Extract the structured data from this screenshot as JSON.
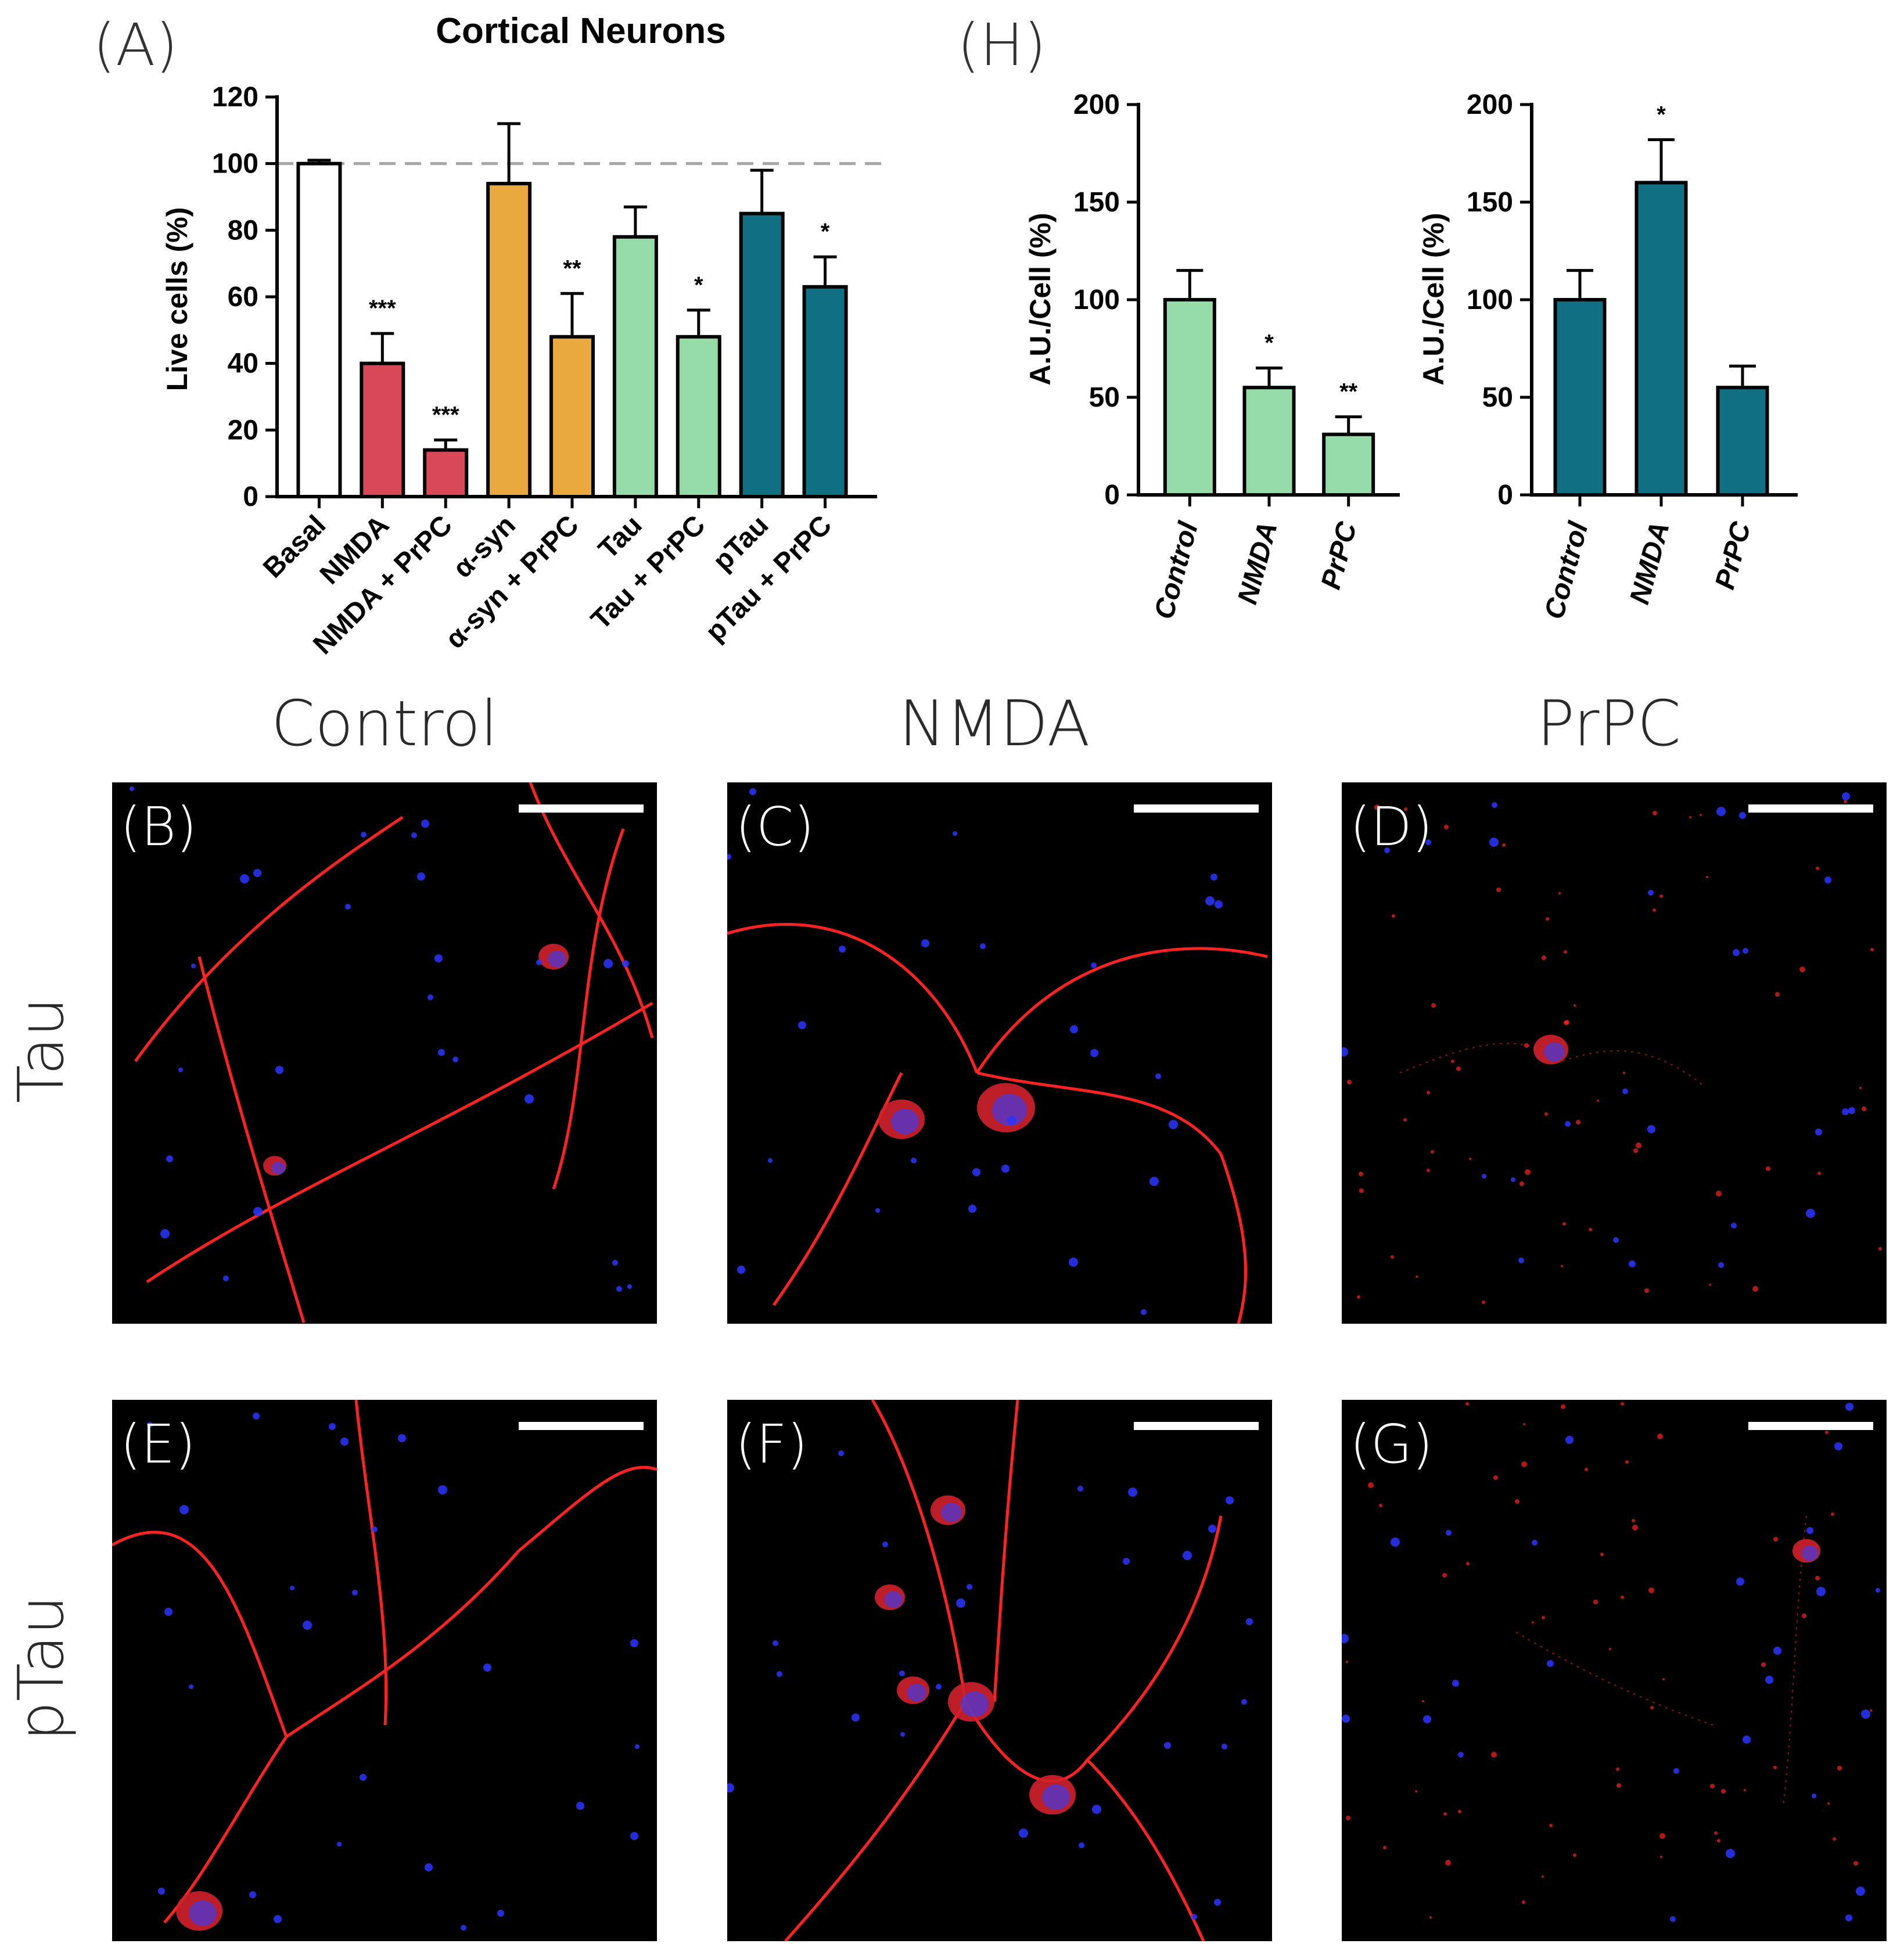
{
  "panel_labels": {
    "A": "(A)",
    "H": "(H)"
  },
  "column_headers": [
    "Control",
    "NMDA",
    "PrPC"
  ],
  "row_headers": [
    "Tau",
    "pTau"
  ],
  "image_panels": [
    {
      "letter": "(B)",
      "stain": "Tau",
      "condition": "Control"
    },
    {
      "letter": "(C)",
      "stain": "Tau",
      "condition": "NMDA"
    },
    {
      "letter": "(D)",
      "stain": "Tau",
      "condition": "PrPC"
    },
    {
      "letter": "(E)",
      "stain": "pTau",
      "condition": "Control"
    },
    {
      "letter": "(F)",
      "stain": "pTau",
      "condition": "NMDA"
    },
    {
      "letter": "(G)",
      "stain": "pTau",
      "condition": "PrPC"
    }
  ],
  "colors": {
    "white": "#ffffff",
    "red": "#d94857",
    "orange": "#eaa93f",
    "green": "#95dba8",
    "teal": "#0f7083",
    "reference_line": "#a6a6a6",
    "neurite_red": "#ff2222",
    "nucleus_blue": "#2a35ff"
  },
  "chart_data": [
    {
      "type": "bar",
      "title": "Cortical Neurons",
      "ylabel": "Live cells (%)",
      "xlabel": "",
      "ylim": [
        0,
        120
      ],
      "yticks": [
        0,
        20,
        40,
        60,
        80,
        100,
        120
      ],
      "reference_line": 100,
      "categories": [
        "Basal",
        "NMDA",
        "NMDA + PrPC",
        "α-syn",
        "α-syn + PrPC",
        "Tau",
        "Tau + PrPC",
        "pTau",
        "pTau + PrPC"
      ],
      "values": [
        100,
        40,
        14,
        94,
        48,
        78,
        48,
        85,
        63
      ],
      "errors": [
        1,
        9,
        3,
        18,
        13,
        9,
        8,
        13,
        9
      ],
      "significance": [
        "",
        "***",
        "***",
        "",
        "**",
        "",
        "*",
        "",
        "*"
      ],
      "bar_colors": [
        "white",
        "red",
        "red",
        "orange",
        "orange",
        "green",
        "green",
        "teal",
        "teal"
      ]
    },
    {
      "type": "bar",
      "title": "",
      "ylabel": "A.U./Cell (%)",
      "xlabel": "",
      "ylim": [
        0,
        200
      ],
      "yticks": [
        0,
        50,
        100,
        150,
        200
      ],
      "categories": [
        "Control",
        "NMDA",
        "PrPC"
      ],
      "values": [
        100,
        55,
        31
      ],
      "errors": [
        15,
        10,
        9
      ],
      "significance": [
        "",
        "*",
        "**"
      ],
      "bar_colors": [
        "green",
        "green",
        "green"
      ]
    },
    {
      "type": "bar",
      "title": "",
      "ylabel": "A.U./Cell (%)",
      "xlabel": "",
      "ylim": [
        0,
        200
      ],
      "yticks": [
        0,
        50,
        100,
        150,
        200
      ],
      "categories": [
        "Control",
        "NMDA",
        "PrPC"
      ],
      "values": [
        100,
        160,
        55
      ],
      "errors": [
        15,
        22,
        11
      ],
      "significance": [
        "",
        "*",
        ""
      ],
      "bar_colors": [
        "teal",
        "teal",
        "teal"
      ]
    }
  ]
}
